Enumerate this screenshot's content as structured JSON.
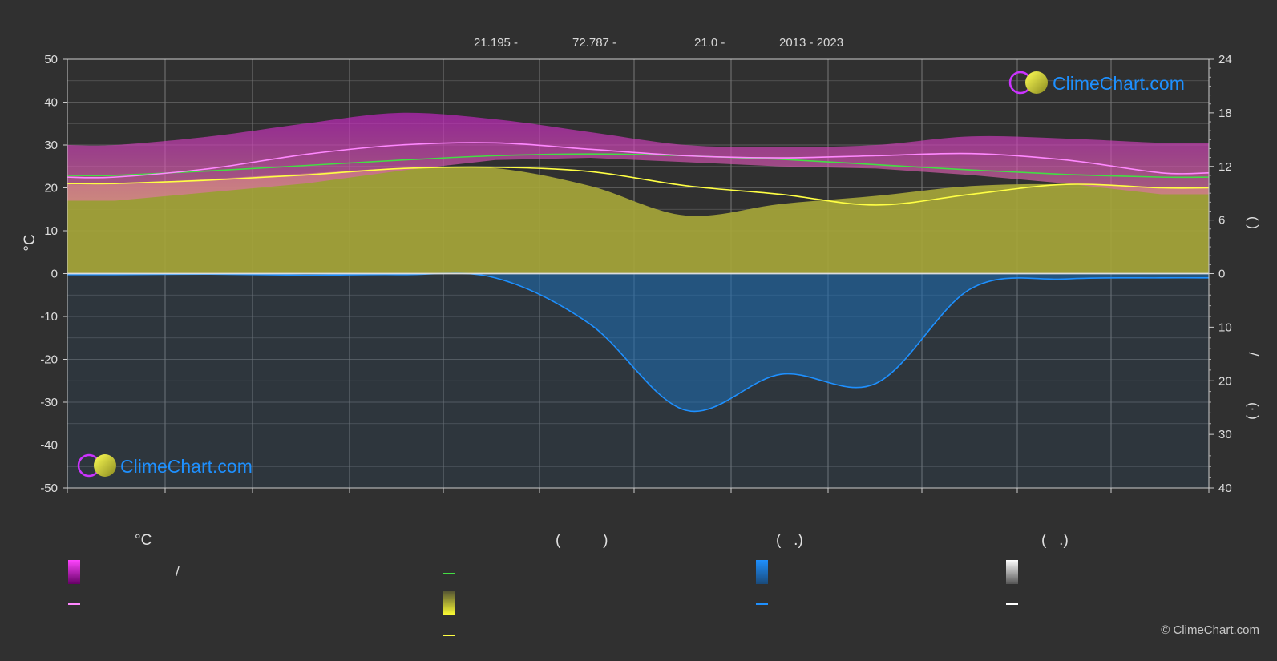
{
  "header": {
    "lat": "21.195 -",
    "lon": "72.787 -",
    "elev": "21.0 -",
    "years": "2013 - 2023"
  },
  "brand": {
    "name": "ClimeChart.com",
    "copyright": "© ClimeChart.com"
  },
  "legend": {
    "temp_head": "°C",
    "sun_head": "(          )",
    "rain_head": "(   .)",
    "snow_head": "(   .)",
    "temp_slash": "/"
  },
  "colors": {
    "background": "#303030",
    "grid": "#5a5a5a",
    "temp_range": "#cc22cc",
    "temp_max_line": "#ff88ff",
    "temp_mean_line": "#ffff44",
    "daylight_line": "#44dd44",
    "sunshine_fill": "#a6a63a",
    "rain": "#1e6fb8",
    "rain_line": "#1e90ff",
    "snow_line": "#ffffff",
    "brand": "#1e90ff"
  },
  "chart_data": {
    "type": "area",
    "months": [
      "",
      "",
      "",
      "",
      "",
      "",
      "",
      "",
      "",
      "",
      "",
      ""
    ],
    "y_left": {
      "label": "°C",
      "range": [
        -50,
        50
      ],
      "ticks": [
        50,
        40,
        30,
        20,
        10,
        0,
        -10,
        -20,
        -30,
        -40,
        -50
      ]
    },
    "y_right_top": {
      "label": "(  )",
      "range": [
        0,
        24
      ],
      "ticks": [
        24,
        18,
        12,
        6,
        0
      ]
    },
    "y_right_bottom": {
      "label": "(·  )",
      "range": [
        0,
        40
      ],
      "ticks": [
        0,
        10,
        20,
        30,
        40
      ]
    },
    "y_right_mid_label": "/",
    "grid": true,
    "series": [
      {
        "key": "temp_max",
        "values": [
          22.5,
          24.5,
          27.8,
          30.0,
          30.5,
          29.0,
          27.5,
          27.0,
          27.5,
          28.0,
          26.5,
          23.5
        ]
      },
      {
        "key": "temp_mean",
        "values": [
          21.0,
          21.8,
          23.0,
          24.5,
          24.8,
          23.8,
          20.5,
          18.5,
          16.0,
          18.5,
          20.8,
          20.0
        ]
      },
      {
        "key": "temp_range_upper",
        "values": [
          30.0,
          32.0,
          35.0,
          37.5,
          36.0,
          33.0,
          30.0,
          29.5,
          30.0,
          32.0,
          31.5,
          30.5
        ]
      },
      {
        "key": "temp_range_lower",
        "values": [
          17.0,
          19.0,
          21.0,
          24.0,
          26.5,
          27.0,
          26.0,
          25.0,
          24.5,
          23.0,
          21.0,
          18.5
        ]
      },
      {
        "key": "daylight_hours",
        "values": [
          11.0,
          11.5,
          12.1,
          12.7,
          13.2,
          13.4,
          13.2,
          12.8,
          12.2,
          11.6,
          11.1,
          10.8
        ]
      },
      {
        "key": "sunshine_hours",
        "values": [
          10.0,
          10.6,
          11.2,
          11.8,
          11.8,
          9.8,
          6.5,
          7.8,
          8.7,
          9.8,
          10.0,
          9.6
        ]
      },
      {
        "key": "precipitation_mm",
        "values": [
          0.2,
          0.1,
          0.3,
          0.2,
          0.8,
          9.5,
          25.5,
          18.8,
          20.5,
          2.8,
          1.0,
          0.8
        ]
      }
    ]
  }
}
